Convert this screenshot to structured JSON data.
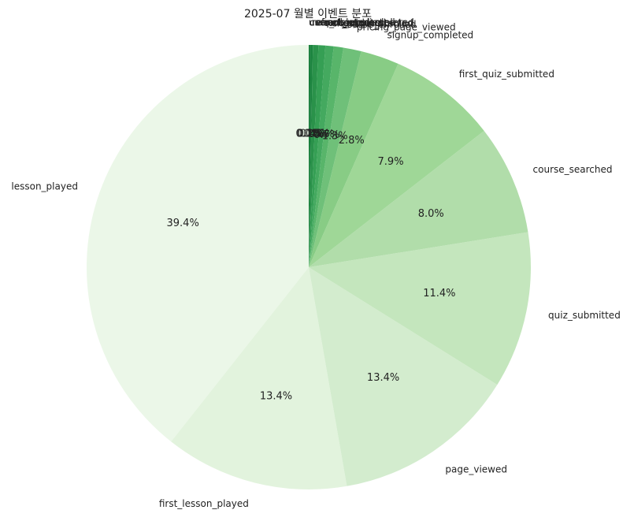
{
  "chart_data": {
    "type": "pie",
    "title": "2025-07 월별 이벤트 분포",
    "start_angle_deg": 90,
    "direction": "counterclockwise",
    "colormap": "Greens",
    "slices": [
      {
        "label": "lesson_played",
        "value": 39.4,
        "pct_label": "39.4%"
      },
      {
        "label": "first_lesson_played",
        "value": 13.4,
        "pct_label": "13.4%"
      },
      {
        "label": "page_viewed",
        "value": 13.4,
        "pct_label": "13.4%"
      },
      {
        "label": "quiz_submitted",
        "value": 11.4,
        "pct_label": "11.4%"
      },
      {
        "label": "course_searched",
        "value": 8.0,
        "pct_label": "8.0%"
      },
      {
        "label": "first_quiz_submitted",
        "value": 7.9,
        "pct_label": "7.9%"
      },
      {
        "label": "signup_completed",
        "value": 2.8,
        "pct_label": "2.8%"
      },
      {
        "label": "pricing_page_viewed",
        "value": 1.3,
        "pct_label": "1.3%"
      },
      {
        "label": "course_enrolled",
        "value": 0.7,
        "pct_label": "0.7%"
      },
      {
        "label": "checkout_started",
        "value": 0.6,
        "pct_label": "0.6%"
      },
      {
        "label": "cart_updated",
        "value": 0.5,
        "pct_label": "0.5%"
      },
      {
        "label": "checkout_completed",
        "value": 0.4,
        "pct_label": "0.4%"
      },
      {
        "label": "refund_requested",
        "value": 0.2,
        "pct_label": "0.2%"
      },
      {
        "label": "coupon_applied",
        "value": 0.1,
        "pct_label": "0.1%"
      },
      {
        "label": "user_deleted",
        "value": 0.0,
        "pct_label": "0.0%"
      }
    ],
    "colors": [
      "#ebf7e8",
      "#e2f3dd",
      "#d3ecce",
      "#c4e6bd",
      "#b1ddaa",
      "#9fd797",
      "#88cc85",
      "#6fc079",
      "#58b56a",
      "#44a95f",
      "#359f54",
      "#2a924a",
      "#1d8540",
      "#0f7734",
      "#006a2e"
    ]
  }
}
